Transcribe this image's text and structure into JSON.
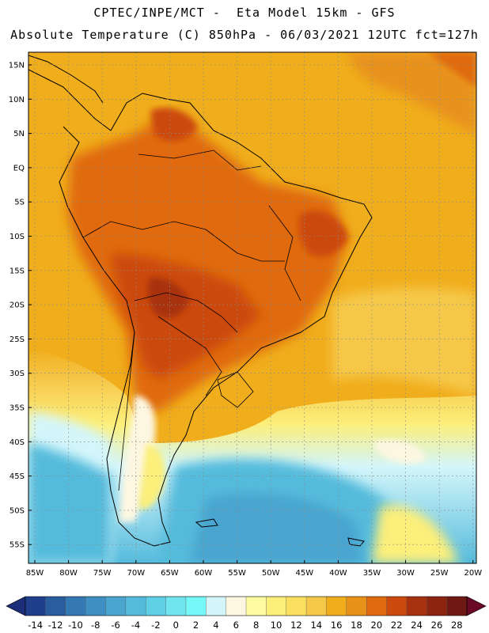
{
  "header": {
    "title_line1": "CPTEC/INPE/MCT -  Eta Model 15km - GFS",
    "title_line2": "Absolute Temperature (C) 850hPa - 06/03/2021 12UTC fct=127h"
  },
  "axes": {
    "lat_labels": [
      "15N",
      "10N",
      "5N",
      "EQ",
      "5S",
      "10S",
      "15S",
      "20S",
      "25S",
      "30S",
      "35S",
      "40S",
      "45S",
      "50S",
      "55S"
    ],
    "lon_labels": [
      "85W",
      "80W",
      "75W",
      "70W",
      "65W",
      "60W",
      "55W",
      "50W",
      "45W",
      "40W",
      "35W",
      "30W",
      "25W",
      "20W"
    ]
  },
  "colorbar": {
    "labels": [
      "-14",
      "-12",
      "-10",
      "-8",
      "-6",
      "-4",
      "-2",
      "0",
      "2",
      "4",
      "6",
      "8",
      "10",
      "12",
      "14",
      "16",
      "18",
      "20",
      "22",
      "24",
      "26",
      "28"
    ],
    "colors": [
      "#1f3f8c",
      "#2a5d9f",
      "#3579b4",
      "#3f8fc2",
      "#4aa5cf",
      "#55bbdc",
      "#5fcfe6",
      "#6fe6ee",
      "#76f8f8",
      "#d4f6fb",
      "#fdf7e2",
      "#fdfba0",
      "#fcef7a",
      "#fbe060",
      "#f6c84a",
      "#f0ad1c",
      "#e8921a",
      "#e06a10",
      "#cc4a0e",
      "#a83210",
      "#8c2410",
      "#6e1a12"
    ],
    "under_color": "#1c2e78",
    "over_color": "#6a0a26"
  },
  "map_colors": {
    "ocean_warm": "#f0ad1c",
    "land_hot": "#cc4a0e",
    "land_hottest": "#a83210",
    "cool_south": "#55bbdc",
    "cold_south": "#4aa5cf",
    "pale": "#fdf7e2",
    "yellow": "#fcef7a",
    "border": "#000000"
  }
}
